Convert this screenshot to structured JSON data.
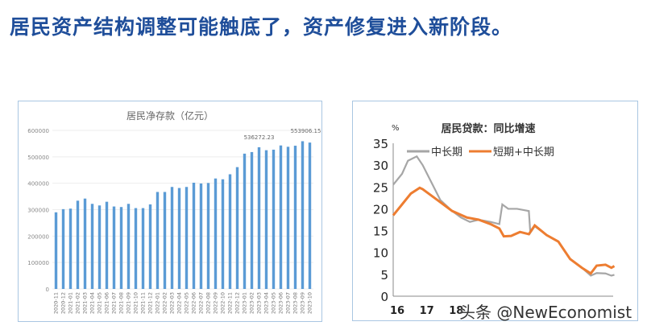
{
  "title": "居民资产结构调整可能触底了，资产修复进入新阶段。",
  "watermark": "头条 @NewEconomist",
  "chart_data": [
    {
      "type": "bar",
      "title": "居民净存款（亿元）",
      "ylim": [
        0,
        600000
      ],
      "yticks": [
        "0",
        "100000",
        "200000",
        "300000",
        "400000",
        "500000",
        "600000"
      ],
      "categories": [
        "2020-11",
        "2020-12",
        "2021-01",
        "2021-02",
        "2021-03",
        "2021-04",
        "2021-05",
        "2021-06",
        "2021-07",
        "2021-08",
        "2021-09",
        "2021-10",
        "2021-11",
        "2021-12",
        "2022-01",
        "2022-02",
        "2022-03",
        "2022-04",
        "2022-05",
        "2022-06",
        "2022-07",
        "2022-08",
        "2022-09",
        "2022-10",
        "2022-11",
        "2022-12",
        "2023-01",
        "2023-02",
        "2023-03",
        "2023-04",
        "2023-05",
        "2023-06",
        "2023-07",
        "2023-08",
        "2023-09",
        "2023-10"
      ],
      "values": [
        290000,
        302000,
        304000,
        334000,
        342000,
        322000,
        316000,
        330000,
        312000,
        310000,
        322000,
        306000,
        306000,
        320000,
        367000,
        367000,
        386000,
        382000,
        386000,
        402000,
        399000,
        401000,
        418000,
        415000,
        434000,
        461000,
        512000,
        518000,
        536272.23,
        525000,
        527000,
        543000,
        538000,
        542000,
        559000,
        553906.15
      ],
      "data_labels": [
        {
          "index": 28,
          "text": "536272.23"
        },
        {
          "index": 35,
          "text": "553906.15"
        }
      ],
      "color": "#5b9bd5"
    },
    {
      "type": "line",
      "title": "居民贷款：同比增速",
      "ylabel": "%",
      "ylim": [
        0,
        35
      ],
      "yticks": [
        "0",
        "5",
        "10",
        "15",
        "20",
        "25",
        "30",
        "35"
      ],
      "xlim": [
        16,
        23.5
      ],
      "xticks": [
        "16",
        "17",
        "18"
      ],
      "series": [
        {
          "name": "中长期",
          "color": "#a6a6a6",
          "x": [
            16,
            16.3,
            16.5,
            16.8,
            17,
            17.3,
            17.6,
            18,
            18.3,
            18.6,
            18.9,
            19.3,
            19.6,
            19.7,
            19.9,
            20.2,
            20.6,
            20.65,
            20.8,
            21.2,
            21.6,
            22,
            22.4,
            22.7,
            22.9,
            23.2,
            23.4,
            23.5
          ],
          "y": [
            25.5,
            28,
            31,
            32,
            30,
            26,
            22,
            19.5,
            18,
            17,
            17.5,
            17,
            16.5,
            21,
            20,
            20,
            19.5,
            14.5,
            16,
            14,
            12.5,
            8.5,
            6.5,
            4.7,
            5.3,
            5.2,
            4.7,
            4.9
          ]
        },
        {
          "name": "短期+中长期",
          "color": "#ed7d31",
          "x": [
            16,
            16.3,
            16.6,
            16.9,
            17,
            17.5,
            18,
            18.5,
            18.9,
            19.3,
            19.6,
            19.75,
            20,
            20.3,
            20.6,
            20.8,
            21.2,
            21.6,
            22,
            22.4,
            22.7,
            22.9,
            23.2,
            23.4,
            23.5
          ],
          "y": [
            18.5,
            21,
            23.5,
            24.8,
            24.5,
            22,
            19.5,
            18,
            17.5,
            16.5,
            15.5,
            13.7,
            13.8,
            14.7,
            14.2,
            16.2,
            14,
            12.5,
            8.5,
            6.5,
            5.2,
            7,
            7.2,
            6.5,
            6.9
          ]
        }
      ]
    }
  ]
}
